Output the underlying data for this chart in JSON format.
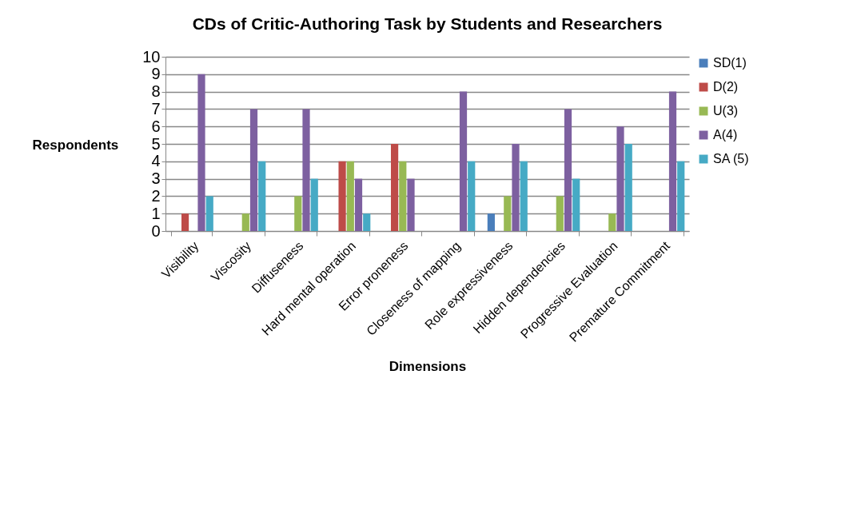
{
  "chart_data": {
    "type": "bar",
    "title": "CDs of Critic-Authoring Task by Students and Researchers",
    "xlabel": "Dimensions",
    "ylabel": "Respondents",
    "categories": [
      "Visibility",
      "Viscosity",
      "Diffuseness",
      "Hard mental operation",
      "Error proneness",
      "Closeness of mapping",
      "Role expressiveness",
      "Hidden dependencies",
      "Progressive Evaluation",
      "Premature Commitment"
    ],
    "series": [
      {
        "name": "SD(1)",
        "color": "#4a7ebb",
        "values": [
          0,
          0,
          0,
          0,
          0,
          0,
          1,
          0,
          0,
          0
        ]
      },
      {
        "name": "D(2)",
        "color": "#be4b48",
        "values": [
          1,
          0,
          0,
          4,
          5,
          0,
          0,
          0,
          0,
          0
        ]
      },
      {
        "name": "U(3)",
        "color": "#98b954",
        "values": [
          0,
          1,
          2,
          4,
          4,
          0,
          2,
          2,
          1,
          0
        ]
      },
      {
        "name": "A(4)",
        "color": "#7d60a0",
        "values": [
          9,
          7,
          7,
          3,
          3,
          8,
          5,
          7,
          6,
          8
        ]
      },
      {
        "name": "SA (5)",
        "color": "#46aac5",
        "values": [
          2,
          4,
          3,
          1,
          0,
          4,
          4,
          3,
          5,
          4
        ]
      }
    ],
    "ylim": [
      0,
      10
    ],
    "yticks": [
      0,
      1,
      2,
      3,
      4,
      5,
      6,
      7,
      8,
      9,
      10
    ],
    "grid": "y",
    "legend": "right"
  }
}
